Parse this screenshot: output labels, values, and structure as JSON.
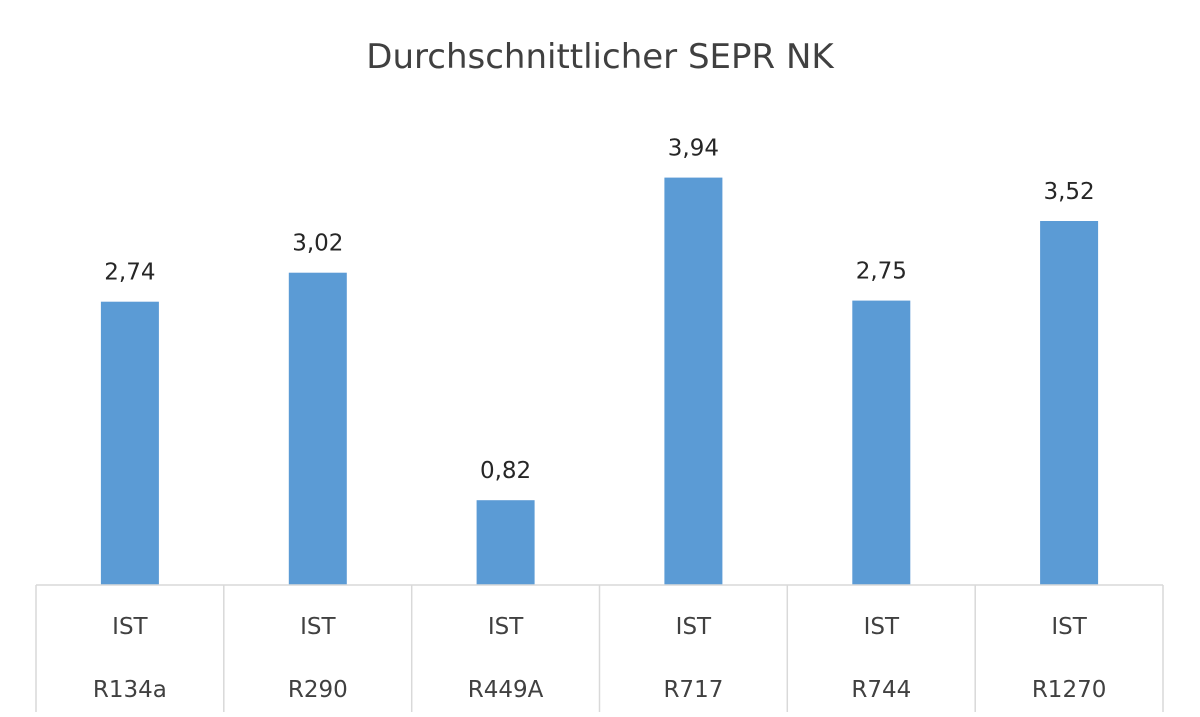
{
  "chart_data": {
    "type": "bar",
    "title": "Durchschnittlicher SEPR NK",
    "xlabel": "",
    "ylabel": "",
    "ylim": [
      0,
      4.4
    ],
    "grid": false,
    "legend": "none",
    "categories": [
      [
        "IST",
        "R134a"
      ],
      [
        "IST",
        "R290"
      ],
      [
        "IST",
        "R449A"
      ],
      [
        "IST",
        "R717"
      ],
      [
        "IST",
        "R744"
      ],
      [
        "IST",
        "R1270"
      ]
    ],
    "values": [
      2.74,
      3.02,
      0.82,
      3.94,
      2.75,
      3.52
    ],
    "data_labels": [
      "2,74",
      "3,02",
      "0,82",
      "3,94",
      "2,75",
      "3,52"
    ],
    "colors": {
      "bar": "#5b9bd5",
      "axis": "#d9d9d9",
      "title": "#404040",
      "label": "#262626"
    }
  }
}
